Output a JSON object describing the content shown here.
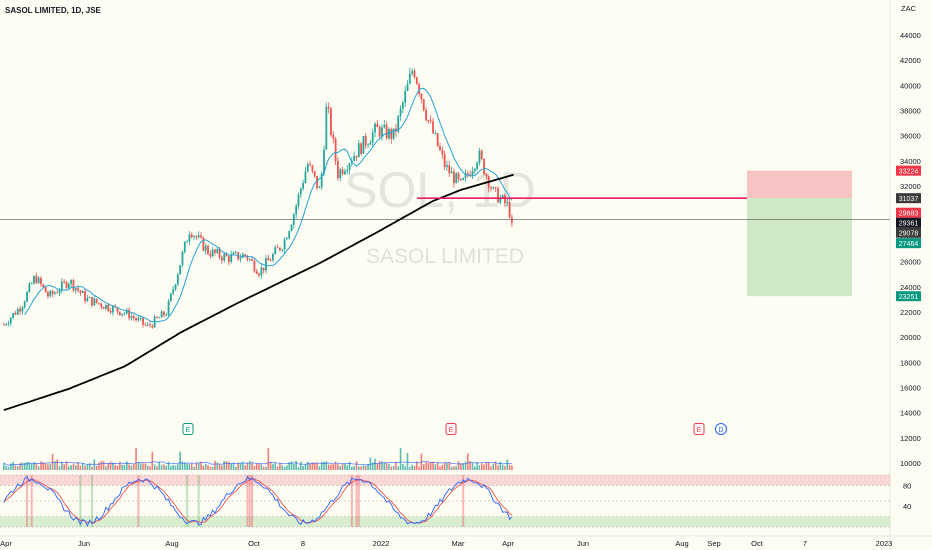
{
  "header": {
    "title": "SASOL LIMITED, 1D, JSE",
    "currency": "ZAC"
  },
  "watermark": {
    "symbol": "SOL, 1D",
    "name": "SASOL LIMITED"
  },
  "colors": {
    "background": "#fdfdf3",
    "up": "#26a69a",
    "down": "#ef5350",
    "ma_long": "#000000",
    "ma_short": "#26a4d3",
    "neckline": "#e91e63",
    "stop_zone": "#f7c3c3",
    "target_zone": "#cfe8c6",
    "stoch_k": "#2962ff",
    "stoch_d": "#ef5350"
  },
  "price_axis": {
    "ticks": [
      "44000",
      "42000",
      "40000",
      "38000",
      "36000",
      "34000",
      "32000",
      "30000",
      "28000",
      "26000",
      "24000",
      "22000",
      "20000",
      "18000",
      "16000",
      "14000",
      "12000",
      "10000"
    ],
    "tick_values": [
      44000,
      42000,
      40000,
      38000,
      36000,
      34000,
      32000,
      30000,
      28000,
      26000,
      24000,
      22000,
      20000,
      18000,
      16000,
      14000,
      12000,
      10000
    ]
  },
  "price_labels": [
    {
      "text": "33224",
      "value": 33224,
      "bg": "#f23645"
    },
    {
      "text": "31037",
      "value": 31037,
      "bg": "#3a3a3a"
    },
    {
      "text": "29883",
      "value": 29883,
      "bg": "#f23645"
    },
    {
      "text": "29361",
      "value": 29361,
      "bg": "#131722"
    },
    {
      "text": "29078",
      "value": 29078,
      "bg": "#3a3a3a"
    },
    {
      "text": "27464",
      "value": 27464,
      "bg": "#089981"
    },
    {
      "text": "23251",
      "value": 23251,
      "bg": "#089981"
    }
  ],
  "time_axis": {
    "labels": [
      "Apr",
      "Jun",
      "Aug",
      "Oct",
      "8",
      "2022",
      "Mar",
      "Apr",
      "Jun",
      "Aug",
      "Sep",
      "Oct",
      "7",
      "2023"
    ]
  },
  "event_markers": [
    {
      "text": "E",
      "type": "earnings-up"
    },
    {
      "text": "E",
      "type": "earnings-down"
    },
    {
      "text": "E",
      "type": "earnings-down"
    },
    {
      "text": "D",
      "type": "dividend"
    }
  ],
  "stoch_axis": {
    "ticks": [
      "80",
      "40"
    ],
    "tick_values": [
      80,
      40
    ]
  },
  "chart_data": {
    "type": "candlestick",
    "title": "SASOL LIMITED, 1D, JSE",
    "ylim": [
      10000,
      45000
    ],
    "neckline": 31037,
    "position": {
      "entry": 31037,
      "stop": 33224,
      "target": 23251
    },
    "price_path": [
      {
        "d": "2021-03-22",
        "v": 21000
      },
      {
        "d": "2021-04-10",
        "v": 22500
      },
      {
        "d": "2021-04-25",
        "v": 24800
      },
      {
        "d": "2021-05-10",
        "v": 23200
      },
      {
        "d": "2021-06-01",
        "v": 24500
      },
      {
        "d": "2021-06-20",
        "v": 23000
      },
      {
        "d": "2021-07-10",
        "v": 22500
      },
      {
        "d": "2021-08-05",
        "v": 21800
      },
      {
        "d": "2021-08-25",
        "v": 20800
      },
      {
        "d": "2021-09-15",
        "v": 22000
      },
      {
        "d": "2021-10-10",
        "v": 28600
      },
      {
        "d": "2021-10-30",
        "v": 26800
      },
      {
        "d": "2021-11-20",
        "v": 26300
      },
      {
        "d": "2021-12-10",
        "v": 26500
      },
      {
        "d": "2021-12-25",
        "v": 25200
      },
      {
        "d": "2022-01-20",
        "v": 27500
      },
      {
        "d": "2022-02-01",
        "v": 30000
      },
      {
        "d": "2022-02-15",
        "v": 33800
      },
      {
        "d": "2022-03-01",
        "v": 31500
      },
      {
        "d": "2022-03-08",
        "v": 38500
      },
      {
        "d": "2022-03-20",
        "v": 33000
      },
      {
        "d": "2022-04-10",
        "v": 34800
      },
      {
        "d": "2022-05-01",
        "v": 36500
      },
      {
        "d": "2022-05-20",
        "v": 36000
      },
      {
        "d": "2022-06-10",
        "v": 41500
      },
      {
        "d": "2022-06-25",
        "v": 37500
      },
      {
        "d": "2022-07-15",
        "v": 33500
      },
      {
        "d": "2022-08-01",
        "v": 32000
      },
      {
        "d": "2022-08-20",
        "v": 34500
      },
      {
        "d": "2022-09-05",
        "v": 31500
      },
      {
        "d": "2022-09-20",
        "v": 30500
      },
      {
        "d": "2022-09-27",
        "v": 29078
      }
    ],
    "ma_long": [
      {
        "d": "2021-03-22",
        "v": 14200
      },
      {
        "d": "2021-06-01",
        "v": 15900
      },
      {
        "d": "2021-08-01",
        "v": 17700
      },
      {
        "d": "2021-10-01",
        "v": 20400
      },
      {
        "d": "2021-12-01",
        "v": 22700
      },
      {
        "d": "2022-01-01",
        "v": 23800
      },
      {
        "d": "2022-03-01",
        "v": 25900
      },
      {
        "d": "2022-05-01",
        "v": 28300
      },
      {
        "d": "2022-07-01",
        "v": 30800
      },
      {
        "d": "2022-08-01",
        "v": 31700
      },
      {
        "d": "2022-09-27",
        "v": 32900
      }
    ],
    "ma_short_lag_days": 20,
    "stochastic": {
      "overbought": 80,
      "oversold": 20,
      "levels": [
        80,
        40
      ]
    }
  }
}
